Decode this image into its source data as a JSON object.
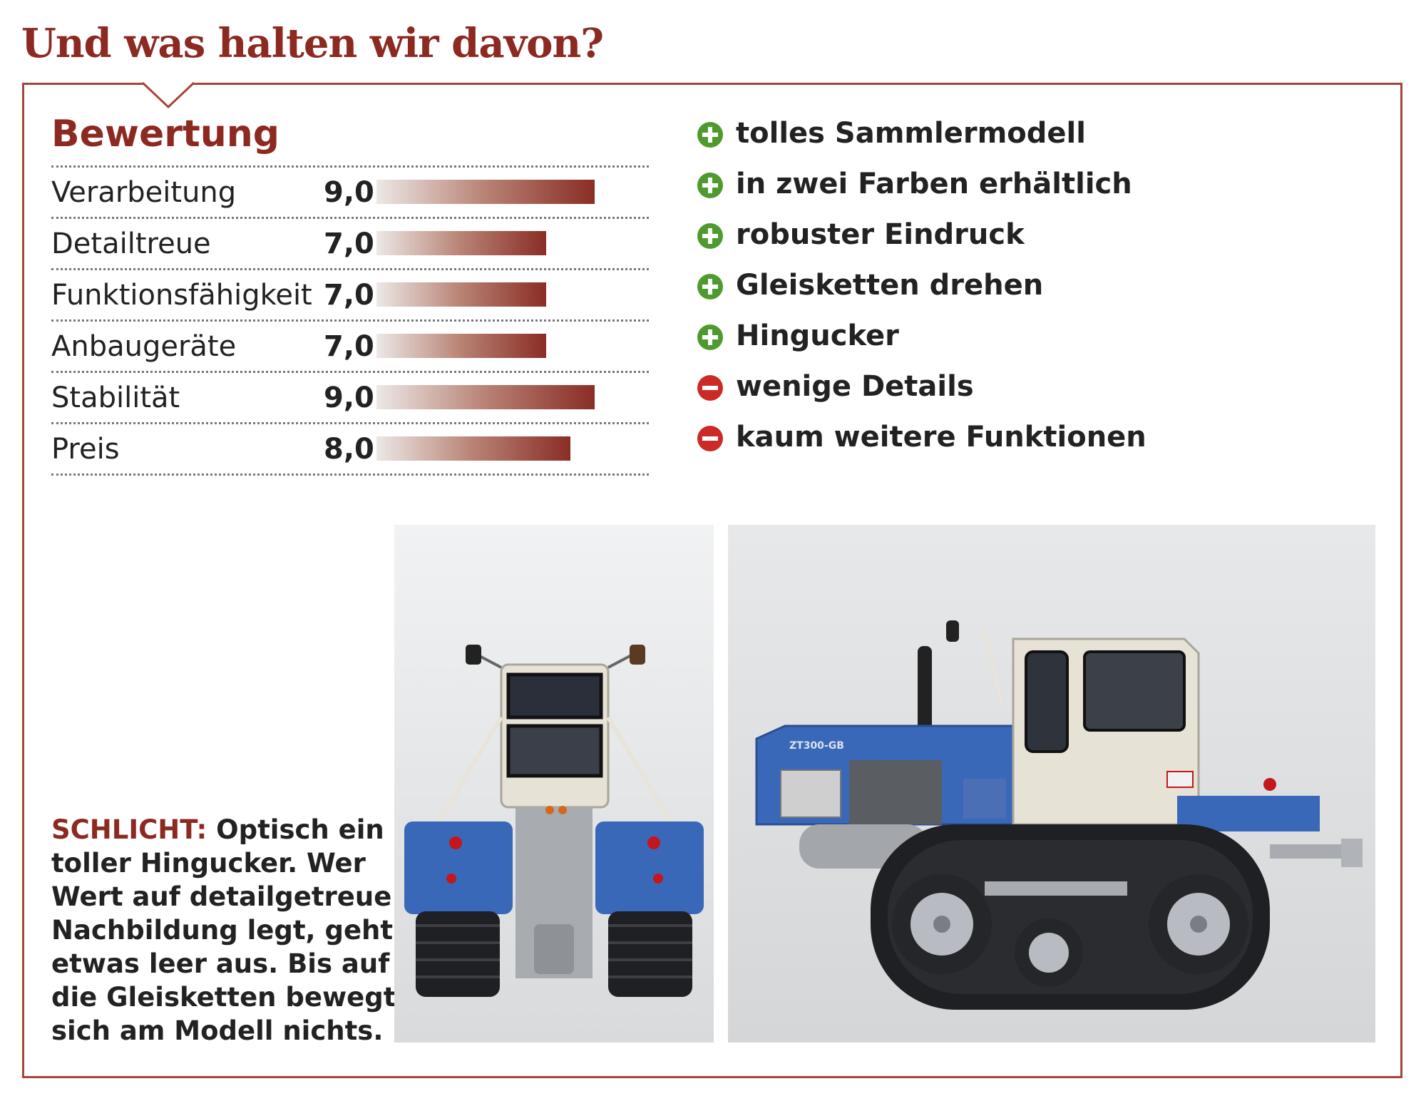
{
  "headline": "Und was halten wir davon?",
  "rating_section": {
    "title": "Bewertung",
    "max_score": 10,
    "items": [
      {
        "label": "Verarbeitung",
        "value": "9,0",
        "score": 9.0
      },
      {
        "label": "Detailtreue",
        "value": "7,0",
        "score": 7.0
      },
      {
        "label": "Funktionsfähigkeit",
        "value": "7,0",
        "score": 7.0
      },
      {
        "label": "Anbaugeräte",
        "value": "7,0",
        "score": 7.0
      },
      {
        "label": "Stabilität",
        "value": "9,0",
        "score": 9.0
      },
      {
        "label": "Preis",
        "value": "8,0",
        "score": 8.0
      }
    ]
  },
  "pros_cons": [
    {
      "type": "plus",
      "text": "tolles Sammlermodell"
    },
    {
      "type": "plus",
      "text": "in zwei Farben erhältlich"
    },
    {
      "type": "plus",
      "text": "robuster Eindruck"
    },
    {
      "type": "plus",
      "text": "Gleisketten drehen"
    },
    {
      "type": "plus",
      "text": "Hingucker"
    },
    {
      "type": "minus",
      "text": "wenige Details"
    },
    {
      "type": "minus",
      "text": "kaum weitere Funktionen"
    }
  ],
  "caption": {
    "kicker": "SCHLICHT:",
    "text": "Optisch ein toller Hingucker. Wer Wert auf detailgetreue Nachbildung legt, geht etwas leer aus. Bis auf die Gleisketten bewegt sich am Modell nichts."
  },
  "photos": {
    "rear": {
      "subject": "tractor-rear-view"
    },
    "side": {
      "subject": "tractor-side-view",
      "model_lettering": "ZT300-GB"
    }
  },
  "colors": {
    "accent": "#8c2a22",
    "border": "#a8433a",
    "plus": "#4e9a2f",
    "minus": "#cc2a27",
    "tractor_blue": "#3a68b8",
    "cab_cream": "#e6e2d6"
  }
}
